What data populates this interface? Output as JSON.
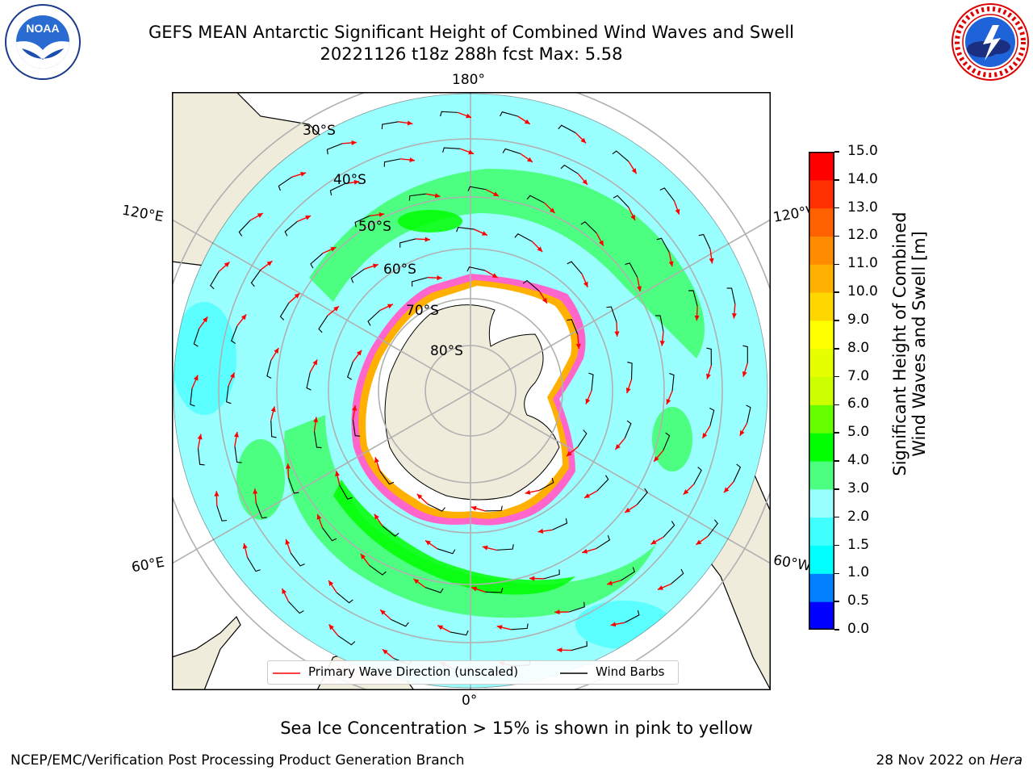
{
  "title": {
    "line1": "GEFS MEAN Antarctic Significant Height of Combined Wind Waves and Swell",
    "line2": "20221126 t18z 288h fcst   Max: 5.58"
  },
  "logos": {
    "left": {
      "text": "NOAA",
      "ring_text": "NATIONAL OCEANIC AND ATMOSPHERIC ADMINISTRATION · U.S. DEPARTMENT OF COMMERCE"
    },
    "right": {
      "ring_text": "NATIONAL WEATHER SERVICE"
    }
  },
  "map": {
    "projection": "south-polar-stereographic",
    "lon_labels": {
      "top": "180°",
      "bottom": "0°",
      "upper_left": "120°E",
      "lower_left": "60°E",
      "upper_right": "120°W",
      "lower_right": "60°W"
    },
    "lat_labels": [
      "30°S",
      "40°S",
      "50°S",
      "60°S",
      "70°S",
      "80°S"
    ],
    "colors": {
      "land": "#efecdc",
      "ocean_base": "#99ffff",
      "grid": "#b0b0b0"
    }
  },
  "legend": {
    "wave_label": "Primary Wave Direction (unscaled)",
    "barb_label": "Wind Barbs",
    "wave_color": "#ff0000",
    "barb_color": "#000000"
  },
  "colorbar": {
    "title_line1": "Significant Height of Combined",
    "title_line2": "Wind Waves and Swell [m]",
    "ticks": [
      "0.0",
      "0.5",
      "1.0",
      "1.5",
      "2.0",
      "3.0",
      "4.0",
      "5.0",
      "6.0",
      "7.0",
      "8.0",
      "9.0",
      "10.0",
      "11.0",
      "12.0",
      "13.0",
      "14.0",
      "15.0"
    ],
    "colors": [
      "#0000ff",
      "#0080ff",
      "#00ffff",
      "#40ffff",
      "#99ffff",
      "#4dff80",
      "#00ff00",
      "#66ff00",
      "#ccff00",
      "#e6ff00",
      "#ffff00",
      "#ffd700",
      "#ffb000",
      "#ff8c00",
      "#ff6000",
      "#ff3000",
      "#ff0000"
    ]
  },
  "note": "Sea Ice Concentration > 15% is shown in pink to yellow",
  "footer": {
    "left": "NCEP/EMC/Verification Post Processing Product Generation Branch",
    "right_prefix": "28 Nov 2022 on ",
    "right_machine": "Hera"
  }
}
